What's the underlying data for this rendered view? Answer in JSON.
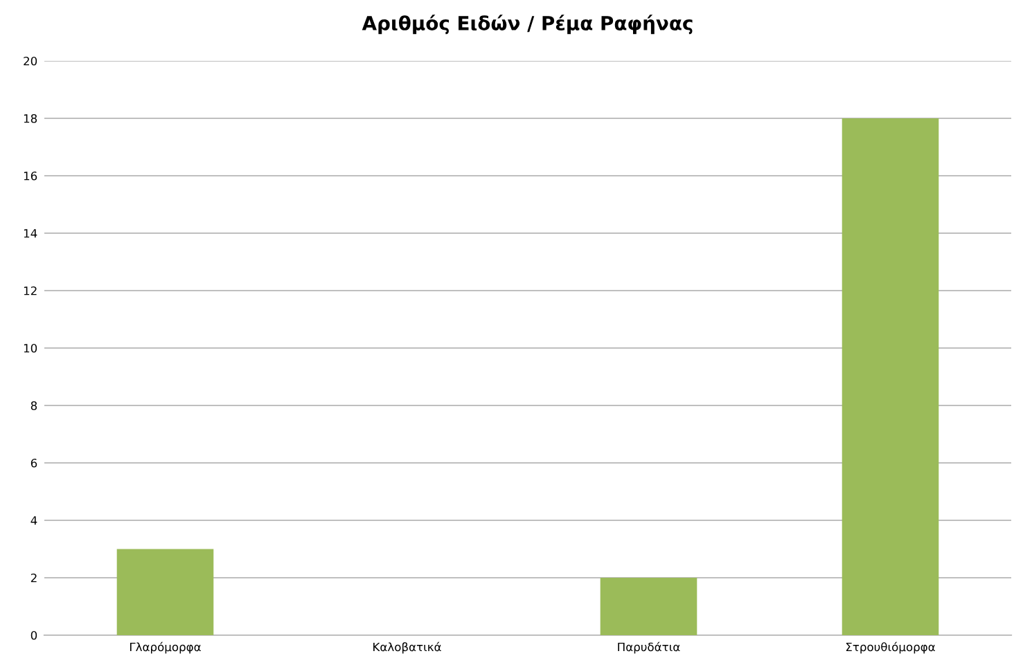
{
  "chart_data": {
    "type": "bar",
    "title": "Αριθμός Ειδών / Ρέμα Ραφήνας",
    "categories": [
      "Γλαρόμορφα",
      "Καλοβατικά",
      "Παρυδάτια",
      "Στρουθιόμορφα"
    ],
    "values": [
      3,
      0,
      2,
      18
    ],
    "color": "#9bbb59",
    "ylim": [
      0,
      20
    ],
    "yticks": [
      0,
      2,
      4,
      6,
      8,
      10,
      12,
      14,
      16,
      18,
      20
    ],
    "grid": "y"
  }
}
